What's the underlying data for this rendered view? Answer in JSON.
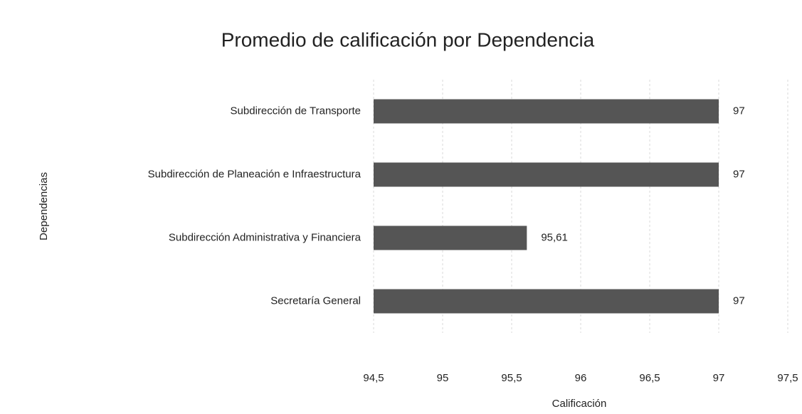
{
  "chart_data": {
    "type": "barh",
    "title": "Promedio de calificación por Dependencia",
    "x_label": "Calificación",
    "y_label": "Dependencias",
    "categories": [
      "Subdirección de Transporte",
      "Subdirección de Planeación e Infraestructura",
      "Subdirección Administrativa y Financiera",
      "Secretaría General"
    ],
    "values": [
      97,
      97,
      95.61,
      97
    ],
    "value_labels": [
      "97",
      "97",
      "95,61",
      "97"
    ],
    "color": "#555555",
    "xlim": [
      94.5,
      97.5
    ],
    "xticks": [
      {
        "value": 94.5,
        "label": "94,5"
      },
      95,
      {
        "value": 95.5,
        "label": "95,5"
      },
      96,
      {
        "value": 96.5,
        "label": "96,5"
      },
      97,
      {
        "value": 97.5,
        "label": "97,5"
      }
    ],
    "grid": true
  }
}
